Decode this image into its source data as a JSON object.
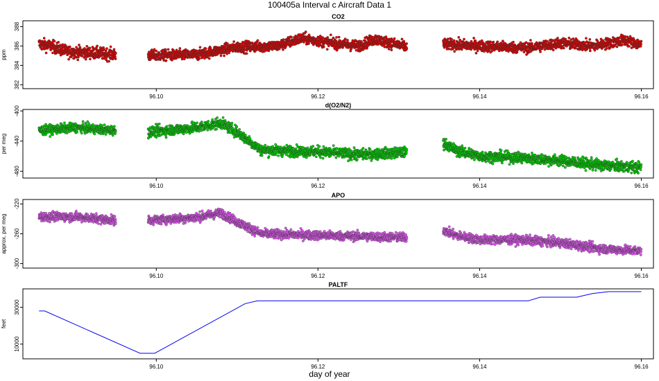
{
  "figure": {
    "title": "100405a   Interval c Aircraft Data 1",
    "xlabel": "day of year"
  },
  "chart_data": [
    {
      "type": "scatter",
      "title": "CO2",
      "ylabel": "ppm",
      "color": "#e00000",
      "xlim": [
        96.0835,
        96.1615
      ],
      "ylim": [
        381.6,
        388.6
      ],
      "yticks": [
        382,
        384,
        386,
        388
      ],
      "xticks": [
        96.1,
        96.12,
        96.14,
        96.16
      ],
      "xtick_labels": [
        "96.10",
        "96.12",
        "96.14",
        "96.16"
      ],
      "segments": [
        {
          "x0": 96.0855,
          "x1": 96.095,
          "keypoints": [
            [
              96.0855,
              386.2
            ],
            [
              96.087,
              386.0
            ],
            [
              96.089,
              385.4
            ],
            [
              96.092,
              385.3
            ],
            [
              96.095,
              385.1
            ]
          ],
          "noise": 0.6
        },
        {
          "x0": 96.099,
          "x1": 96.131,
          "keypoints": [
            [
              96.099,
              385.0
            ],
            [
              96.105,
              385.1
            ],
            [
              96.11,
              385.9
            ],
            [
              96.115,
              386.0
            ],
            [
              96.118,
              386.8
            ],
            [
              96.121,
              386.4
            ],
            [
              96.125,
              386.0
            ],
            [
              96.127,
              386.7
            ],
            [
              96.129,
              386.3
            ],
            [
              96.131,
              385.9
            ]
          ],
          "noise": 0.55
        },
        {
          "x0": 96.1355,
          "x1": 96.16,
          "keypoints": [
            [
              96.1355,
              386.2
            ],
            [
              96.14,
              386.0
            ],
            [
              96.146,
              385.8
            ],
            [
              96.15,
              386.3
            ],
            [
              96.154,
              386.0
            ],
            [
              96.158,
              386.6
            ],
            [
              96.16,
              386.1
            ]
          ],
          "noise": 0.55
        }
      ]
    },
    {
      "type": "scatter",
      "title": "d(O2/N2)",
      "ylabel": "per meg",
      "color": "#00cc00",
      "xlim": [
        96.0835,
        96.1615
      ],
      "ylim": [
        -489,
        -398
      ],
      "yticks": [
        -400,
        -440,
        -480
      ],
      "xticks": [
        96.1,
        96.12,
        96.14,
        96.16
      ],
      "xtick_labels": [
        "96.10",
        "96.12",
        "96.14",
        "96.16"
      ],
      "segments": [
        {
          "x0": 96.0855,
          "x1": 96.095,
          "keypoints": [
            [
              96.0855,
              -426
            ],
            [
              96.09,
              -422
            ],
            [
              96.095,
              -426
            ]
          ],
          "noise": 6
        },
        {
          "x0": 96.099,
          "x1": 96.131,
          "keypoints": [
            [
              96.099,
              -428
            ],
            [
              96.105,
              -422
            ],
            [
              96.108,
              -416
            ],
            [
              96.11,
              -428
            ],
            [
              96.113,
              -452
            ],
            [
              96.12,
              -454
            ],
            [
              96.125,
              -458
            ],
            [
              96.131,
              -455
            ]
          ],
          "noise": 7
        },
        {
          "x0": 96.1355,
          "x1": 96.16,
          "keypoints": [
            [
              96.1355,
              -442
            ],
            [
              96.137,
              -452
            ],
            [
              96.14,
              -460
            ],
            [
              96.145,
              -462
            ],
            [
              96.15,
              -466
            ],
            [
              96.155,
              -472
            ],
            [
              96.16,
              -475
            ]
          ],
          "noise": 7
        }
      ]
    },
    {
      "type": "scatter",
      "title": "APO",
      "ylabel": "approx. per meg",
      "color": "#dd55ee",
      "xlim": [
        96.0835,
        96.1615
      ],
      "ylim": [
        -306,
        -214
      ],
      "yticks": [
        -220,
        -260,
        -300
      ],
      "xticks": [
        96.1,
        96.12,
        96.14,
        96.16
      ],
      "xtick_labels": [
        "96.10",
        "96.12",
        "96.14",
        "96.16"
      ],
      "segments": [
        {
          "x0": 96.0855,
          "x1": 96.095,
          "keypoints": [
            [
              96.0855,
              -237
            ],
            [
              96.09,
              -237
            ],
            [
              96.095,
              -242
            ]
          ],
          "noise": 6
        },
        {
          "x0": 96.099,
          "x1": 96.131,
          "keypoints": [
            [
              96.099,
              -242
            ],
            [
              96.105,
              -238
            ],
            [
              96.108,
              -232
            ],
            [
              96.11,
              -244
            ],
            [
              96.113,
              -260
            ],
            [
              96.12,
              -262
            ],
            [
              96.131,
              -265
            ]
          ],
          "noise": 6
        },
        {
          "x0": 96.1355,
          "x1": 96.16,
          "keypoints": [
            [
              96.1355,
              -255
            ],
            [
              96.137,
              -262
            ],
            [
              96.14,
              -268
            ],
            [
              96.145,
              -268
            ],
            [
              96.15,
              -272
            ],
            [
              96.155,
              -280
            ],
            [
              96.16,
              -283
            ]
          ],
          "noise": 6
        }
      ]
    },
    {
      "type": "line",
      "title": "PALTF",
      "ylabel": "feet",
      "color": "#0000ee",
      "xlim": [
        96.0835,
        96.1615
      ],
      "ylim": [
        2000,
        40000
      ],
      "yticks": [
        10000,
        30000
      ],
      "xticks": [
        96.1,
        96.12,
        96.14,
        96.16
      ],
      "xtick_labels": [
        "96.10",
        "96.12",
        "96.14",
        "96.16"
      ],
      "x": [
        96.0855,
        96.0862,
        96.098,
        96.0998,
        96.111,
        96.1125,
        96.114,
        96.146,
        96.1475,
        96.152,
        96.154,
        96.156,
        96.16
      ],
      "y": [
        28000,
        28000,
        5000,
        5000,
        32000,
        33500,
        33500,
        33500,
        35500,
        35500,
        37500,
        38500,
        38500
      ]
    }
  ]
}
